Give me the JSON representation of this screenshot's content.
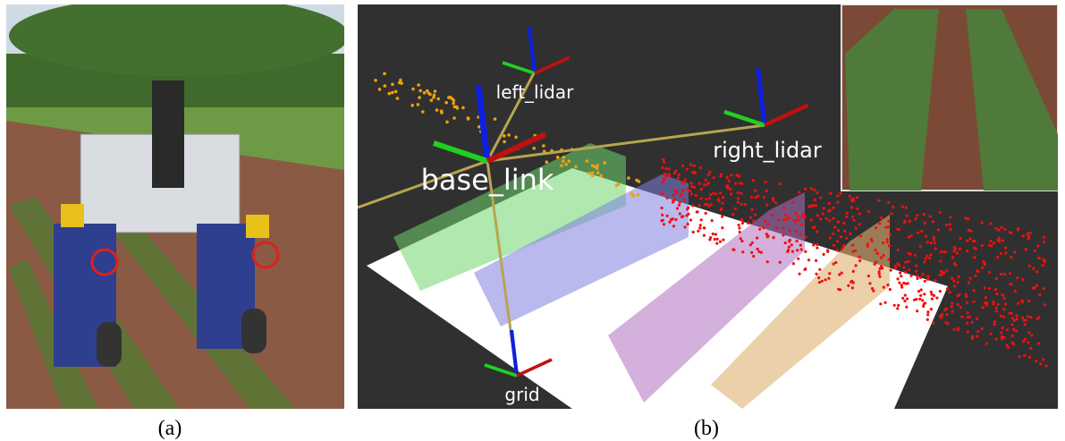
{
  "panels": [
    {
      "caption": "(a)"
    },
    {
      "caption": "(b)",
      "frame_labels": {
        "left": "left_lidar",
        "right": "right_lidar",
        "base": "base_link",
        "grid": "grid"
      }
    }
  ]
}
